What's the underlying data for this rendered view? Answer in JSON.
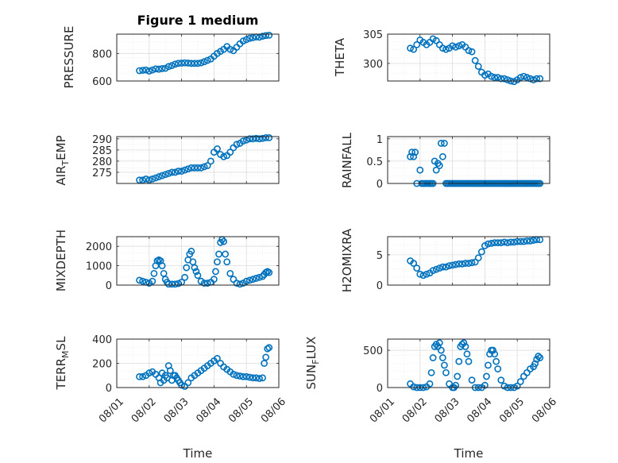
{
  "figure": {
    "title": "Figure 1 medium",
    "marker_color": "#0072BD"
  },
  "chart_data": [
    {
      "type": "scatter",
      "title": "Figure 1 medium",
      "ylabel": "PRESSURE",
      "ylabel_sub": "",
      "ylabel_tail": "",
      "xlim": [
        0,
        5
      ],
      "ylim": [
        600,
        940
      ],
      "yticks": [
        600,
        800
      ],
      "xticks": [
        0,
        1,
        2,
        3,
        4,
        5
      ],
      "xtick_labels": [
        "08/01",
        "08/02",
        "08/03",
        "08/04",
        "08/05",
        "08/06"
      ],
      "show_xticklabels": false,
      "xlabel": "",
      "x": [
        0.7,
        0.8,
        0.9,
        1.0,
        1.1,
        1.2,
        1.3,
        1.4,
        1.5,
        1.6,
        1.7,
        1.8,
        1.9,
        2.0,
        2.1,
        2.2,
        2.3,
        2.4,
        2.5,
        2.6,
        2.7,
        2.8,
        2.9,
        3.0,
        3.1,
        3.2,
        3.3,
        3.4,
        3.5,
        3.6,
        3.7,
        3.8,
        3.9,
        4.0,
        4.1,
        4.2,
        4.3,
        4.4,
        4.5,
        4.6,
        4.7
      ],
      "y": [
        675,
        678,
        680,
        672,
        680,
        688,
        686,
        690,
        692,
        705,
        712,
        722,
        728,
        730,
        732,
        730,
        728,
        728,
        728,
        732,
        740,
        750,
        760,
        780,
        800,
        815,
        830,
        850,
        830,
        820,
        845,
        870,
        890,
        900,
        910,
        915,
        920,
        918,
        925,
        930,
        932
      ]
    },
    {
      "type": "scatter",
      "title": "",
      "ylabel": "THETA",
      "ylabel_sub": "",
      "ylabel_tail": "",
      "xlim": [
        0,
        5
      ],
      "ylim": [
        297,
        305
      ],
      "yticks": [
        300,
        305
      ],
      "xticks": [
        0,
        1,
        2,
        3,
        4,
        5
      ],
      "xtick_labels": [
        "08/01",
        "08/02",
        "08/03",
        "08/04",
        "08/05",
        "08/06"
      ],
      "show_xticklabels": false,
      "xlabel": "",
      "x": [
        0.7,
        0.8,
        0.9,
        1.0,
        1.1,
        1.2,
        1.3,
        1.4,
        1.5,
        1.6,
        1.7,
        1.8,
        1.9,
        2.0,
        2.1,
        2.2,
        2.3,
        2.4,
        2.5,
        2.6,
        2.7,
        2.8,
        2.9,
        3.0,
        3.1,
        3.2,
        3.3,
        3.4,
        3.5,
        3.6,
        3.7,
        3.8,
        3.9,
        4.0,
        4.1,
        4.2,
        4.3,
        4.4,
        4.5,
        4.6,
        4.7
      ],
      "y": [
        302.6,
        302.4,
        303.2,
        304.0,
        303.6,
        303.2,
        303.6,
        304.2,
        303.9,
        303.2,
        302.6,
        302.4,
        302.6,
        303.0,
        302.8,
        303.0,
        303.2,
        302.8,
        302.2,
        302.0,
        300.5,
        299.5,
        298.5,
        298.0,
        298.2,
        297.8,
        297.6,
        297.6,
        297.4,
        297.4,
        297.2,
        297.0,
        296.9,
        297.2,
        297.6,
        297.8,
        297.6,
        297.4,
        297.2,
        297.4,
        297.4
      ]
    },
    {
      "type": "scatter",
      "title": "",
      "ylabel": "AIR",
      "ylabel_sub": "T",
      "ylabel_tail": "EMP",
      "xlim": [
        0,
        5
      ],
      "ylim": [
        270,
        291
      ],
      "yticks": [
        275,
        280,
        285,
        290
      ],
      "xticks": [
        0,
        1,
        2,
        3,
        4,
        5
      ],
      "xtick_labels": [
        "08/01",
        "08/02",
        "08/03",
        "08/04",
        "08/05",
        "08/06"
      ],
      "show_xticklabels": false,
      "xlabel": "",
      "x": [
        0.7,
        0.8,
        0.9,
        1.0,
        1.1,
        1.2,
        1.3,
        1.4,
        1.5,
        1.6,
        1.7,
        1.8,
        1.9,
        2.0,
        2.1,
        2.2,
        2.3,
        2.4,
        2.5,
        2.6,
        2.7,
        2.8,
        2.9,
        3.0,
        3.1,
        3.2,
        3.3,
        3.4,
        3.5,
        3.6,
        3.7,
        3.8,
        3.9,
        4.0,
        4.1,
        4.2,
        4.3,
        4.4,
        4.5,
        4.6,
        4.7
      ],
      "y": [
        271.5,
        271.5,
        272.0,
        271.5,
        272.0,
        272.5,
        273.0,
        273.5,
        274.0,
        274.5,
        275.0,
        275.0,
        275.5,
        275.5,
        276.0,
        276.5,
        277.0,
        277.0,
        277.0,
        277.0,
        277.5,
        278.0,
        280.0,
        284.0,
        285.5,
        283.0,
        282.0,
        282.5,
        284.0,
        286.0,
        287.5,
        288.0,
        289.0,
        289.5,
        290.0,
        290.0,
        290.2,
        290.0,
        290.2,
        290.5,
        290.5
      ]
    },
    {
      "type": "scatter",
      "title": "",
      "ylabel": "RAINFALL",
      "ylabel_sub": "",
      "ylabel_tail": "",
      "xlim": [
        0,
        5
      ],
      "ylim": [
        0,
        1.05
      ],
      "yticks": [
        0,
        0.5,
        1
      ],
      "xticks": [
        0,
        1,
        2,
        3,
        4,
        5
      ],
      "xtick_labels": [
        "08/01",
        "08/02",
        "08/03",
        "08/04",
        "08/05",
        "08/06"
      ],
      "show_xticklabels": false,
      "xlabel": "",
      "x": [
        0.7,
        0.75,
        0.8,
        0.85,
        0.9,
        1.0,
        1.05,
        1.1,
        1.15,
        1.2,
        1.25,
        1.3,
        1.35,
        1.4,
        1.45,
        1.5,
        1.55,
        1.6,
        1.65,
        1.7,
        1.75,
        1.8,
        1.85,
        1.9,
        1.95,
        2.0,
        2.05,
        2.1,
        2.15,
        2.2,
        2.25,
        2.3,
        2.35,
        2.4,
        2.45,
        2.5,
        2.55,
        2.6,
        2.65,
        2.7,
        2.75,
        2.8,
        2.85,
        2.9,
        2.95,
        3.0,
        3.05,
        3.1,
        3.15,
        3.2,
        3.25,
        3.3,
        3.35,
        3.4,
        3.45,
        3.5,
        3.55,
        3.6,
        3.65,
        3.7,
        3.75,
        3.8,
        3.85,
        3.9,
        3.95,
        4.0,
        4.05,
        4.1,
        4.15,
        4.2,
        4.25,
        4.3,
        4.35,
        4.4,
        4.45,
        4.5,
        4.55,
        4.6,
        4.65,
        4.7
      ],
      "y": [
        0.6,
        0.7,
        0.6,
        0.7,
        0.0,
        0.3,
        0.0,
        0.0,
        0.0,
        0.0,
        0.0,
        0.0,
        0.0,
        0.0,
        0.5,
        0.3,
        0.45,
        0.4,
        0.9,
        0.6,
        0.9,
        0.0,
        0.0,
        0.0,
        0.0,
        0.0,
        0.0,
        0.0,
        0.0,
        0.0,
        0.0,
        0.0,
        0.0,
        0.0,
        0.0,
        0.0,
        0.0,
        0.0,
        0.0,
        0.0,
        0.0,
        0.0,
        0.0,
        0.0,
        0.0,
        0.0,
        0.0,
        0.0,
        0.0,
        0.0,
        0.0,
        0.0,
        0.0,
        0.0,
        0.0,
        0.0,
        0.0,
        0.0,
        0.0,
        0.0,
        0.0,
        0.0,
        0.0,
        0.0,
        0.0,
        0.0,
        0.0,
        0.0,
        0.0,
        0.0,
        0.0,
        0.0,
        0.0,
        0.0,
        0.0,
        0.0,
        0.0,
        0.0,
        0.0,
        0.0
      ]
    },
    {
      "type": "scatter",
      "title": "",
      "ylabel": "MIXDEPTH",
      "ylabel_sub": "",
      "ylabel_tail": "",
      "xlim": [
        0,
        5
      ],
      "ylim": [
        0,
        2500
      ],
      "yticks": [
        0,
        1000,
        2000
      ],
      "xticks": [
        0,
        1,
        2,
        3,
        4,
        5
      ],
      "xtick_labels": [
        "08/01",
        "08/02",
        "08/03",
        "08/04",
        "08/05",
        "08/06"
      ],
      "show_xticklabels": false,
      "xlabel": "",
      "x": [
        0.7,
        0.8,
        0.9,
        1.0,
        1.1,
        1.15,
        1.2,
        1.25,
        1.3,
        1.35,
        1.4,
        1.45,
        1.5,
        1.55,
        1.6,
        1.7,
        1.8,
        1.9,
        2.0,
        2.1,
        2.15,
        2.2,
        2.25,
        2.3,
        2.35,
        2.4,
        2.45,
        2.5,
        2.6,
        2.7,
        2.8,
        2.9,
        3.0,
        3.05,
        3.1,
        3.15,
        3.2,
        3.25,
        3.3,
        3.35,
        3.4,
        3.5,
        3.6,
        3.7,
        3.8,
        3.9,
        4.0,
        4.1,
        4.2,
        4.3,
        4.4,
        4.5,
        4.55,
        4.6,
        4.65,
        4.7
      ],
      "y": [
        250,
        200,
        150,
        100,
        200,
        600,
        1000,
        1250,
        1300,
        1250,
        1000,
        600,
        300,
        150,
        50,
        50,
        50,
        80,
        150,
        400,
        900,
        1300,
        1600,
        1750,
        1200,
        900,
        700,
        500,
        200,
        100,
        100,
        150,
        300,
        700,
        1200,
        1600,
        2200,
        2350,
        2250,
        1600,
        1200,
        600,
        300,
        100,
        50,
        100,
        200,
        250,
        300,
        350,
        400,
        450,
        550,
        650,
        700,
        650
      ]
    },
    {
      "type": "scatter",
      "title": "",
      "ylabel": "H2OMIXRA",
      "ylabel_sub": "",
      "ylabel_tail": "",
      "xlim": [
        0,
        5
      ],
      "ylim": [
        0,
        8
      ],
      "yticks": [
        0,
        5
      ],
      "xticks": [
        0,
        1,
        2,
        3,
        4,
        5
      ],
      "xtick_labels": [
        "08/01",
        "08/02",
        "08/03",
        "08/04",
        "08/05",
        "08/06"
      ],
      "show_xticklabels": false,
      "xlabel": "",
      "x": [
        0.7,
        0.8,
        0.9,
        1.0,
        1.1,
        1.2,
        1.3,
        1.4,
        1.5,
        1.6,
        1.7,
        1.8,
        1.9,
        2.0,
        2.1,
        2.2,
        2.3,
        2.4,
        2.5,
        2.6,
        2.7,
        2.8,
        2.9,
        3.0,
        3.1,
        3.2,
        3.3,
        3.4,
        3.5,
        3.6,
        3.7,
        3.8,
        3.9,
        4.0,
        4.1,
        4.2,
        4.3,
        4.4,
        4.5,
        4.6,
        4.7
      ],
      "y": [
        4.0,
        3.6,
        2.8,
        1.8,
        1.6,
        1.8,
        2.0,
        2.4,
        2.6,
        2.8,
        3.0,
        3.0,
        3.2,
        3.3,
        3.4,
        3.5,
        3.5,
        3.6,
        3.6,
        3.7,
        3.8,
        4.5,
        5.5,
        6.5,
        6.8,
        6.9,
        7.0,
        7.0,
        7.0,
        7.1,
        7.0,
        7.1,
        7.1,
        7.2,
        7.2,
        7.2,
        7.3,
        7.3,
        7.4,
        7.5,
        7.5
      ]
    },
    {
      "type": "scatter",
      "title": "",
      "ylabel": "TERR",
      "ylabel_sub": "M",
      "ylabel_tail": "SL",
      "xlim": [
        0,
        5
      ],
      "ylim": [
        0,
        400
      ],
      "yticks": [
        0,
        200,
        400
      ],
      "xticks": [
        0,
        1,
        2,
        3,
        4,
        5
      ],
      "xtick_labels": [
        "08/01",
        "08/02",
        "08/03",
        "08/04",
        "08/05",
        "08/06"
      ],
      "show_xticklabels": true,
      "xlabel": "Time",
      "x": [
        0.7,
        0.8,
        0.9,
        1.0,
        1.1,
        1.2,
        1.3,
        1.35,
        1.4,
        1.45,
        1.5,
        1.55,
        1.6,
        1.65,
        1.7,
        1.75,
        1.8,
        1.85,
        1.9,
        1.95,
        2.0,
        2.1,
        2.2,
        2.3,
        2.4,
        2.5,
        2.6,
        2.7,
        2.8,
        2.9,
        3.0,
        3.1,
        3.2,
        3.3,
        3.4,
        3.5,
        3.6,
        3.7,
        3.8,
        3.9,
        4.0,
        4.1,
        4.2,
        4.3,
        4.4,
        4.5,
        4.55,
        4.6,
        4.65,
        4.7
      ],
      "y": [
        90,
        90,
        100,
        120,
        130,
        110,
        80,
        40,
        120,
        60,
        100,
        80,
        180,
        140,
        60,
        100,
        100,
        80,
        60,
        40,
        20,
        10,
        40,
        80,
        100,
        120,
        140,
        160,
        180,
        200,
        220,
        240,
        200,
        170,
        150,
        130,
        110,
        100,
        95,
        90,
        90,
        85,
        80,
        80,
        75,
        80,
        200,
        250,
        320,
        330
      ]
    },
    {
      "type": "scatter",
      "title": "",
      "ylabel": "SUN",
      "ylabel_sub": "F",
      "ylabel_tail": "LUX",
      "xlim": [
        0,
        5
      ],
      "ylim": [
        0,
        650
      ],
      "yticks": [
        0,
        500
      ],
      "xticks": [
        0,
        1,
        2,
        3,
        4,
        5
      ],
      "xtick_labels": [
        "08/01",
        "08/02",
        "08/03",
        "08/04",
        "08/05",
        "08/06"
      ],
      "show_xticklabels": true,
      "xlabel": "Time",
      "x": [
        0.7,
        0.8,
        0.9,
        1.0,
        1.1,
        1.2,
        1.3,
        1.35,
        1.4,
        1.45,
        1.5,
        1.55,
        1.6,
        1.65,
        1.7,
        1.75,
        1.8,
        1.9,
        2.0,
        2.05,
        2.1,
        2.15,
        2.2,
        2.25,
        2.3,
        2.35,
        2.4,
        2.45,
        2.5,
        2.6,
        2.7,
        2.8,
        2.9,
        3.0,
        3.05,
        3.1,
        3.15,
        3.2,
        3.25,
        3.3,
        3.35,
        3.4,
        3.5,
        3.6,
        3.7,
        3.8,
        3.9,
        4.0,
        4.1,
        4.2,
        4.3,
        4.4,
        4.5,
        4.55,
        4.6,
        4.65,
        4.7
      ],
      "y": [
        50,
        10,
        0,
        0,
        0,
        10,
        50,
        200,
        400,
        550,
        580,
        550,
        600,
        500,
        400,
        300,
        200,
        50,
        0,
        0,
        30,
        150,
        350,
        550,
        580,
        600,
        550,
        450,
        350,
        100,
        0,
        0,
        0,
        30,
        150,
        300,
        450,
        500,
        500,
        450,
        350,
        250,
        100,
        20,
        0,
        0,
        0,
        20,
        80,
        150,
        200,
        250,
        280,
        320,
        380,
        420,
        400
      ]
    }
  ]
}
